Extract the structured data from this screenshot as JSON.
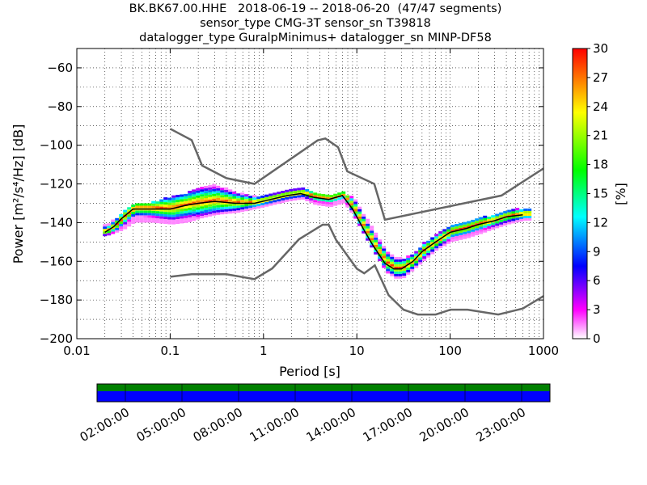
{
  "chart_data": {
    "type": "heatmap",
    "title_lines": [
      "BK.BK67.00.HHE   2018-06-19 -- 2018-06-20  (47/47 segments)",
      "sensor_type CMG-3T sensor_sn T39818",
      "datalogger_type GuralpMinimus+ datalogger_sn MINP-DF58"
    ],
    "xlabel": "Period [s]",
    "ylabel_text": "Power [m²/s⁴/Hz] [dB]",
    "x_scale": "log",
    "xlim": [
      0.01,
      1000
    ],
    "ylim": [
      -200,
      -50
    ],
    "x_tick_labels": [
      "0.01",
      "0.1",
      "1",
      "10",
      "100",
      "1000"
    ],
    "y_ticks": [
      -200,
      -180,
      -160,
      -140,
      -120,
      -100,
      -80,
      -60
    ],
    "y_tick_labels": [
      "−200",
      "−180",
      "−160",
      "−140",
      "−120",
      "−100",
      "−80",
      "−60"
    ],
    "grid": "dotted",
    "colorbar": {
      "label": "[%]",
      "range": [
        0,
        30
      ],
      "tick_labels": [
        "0",
        "3",
        "6",
        "9",
        "12",
        "15",
        "18",
        "21",
        "24",
        "27",
        "30"
      ],
      "stops": [
        "#ffffff",
        "#ff00ff",
        "#0000ff",
        "#00ffff",
        "#00ff00",
        "#ffff00",
        "#ff0000"
      ]
    },
    "noise_model_high": {
      "name": "NHNM",
      "x": [
        0.1,
        0.17,
        0.22,
        0.4,
        0.8,
        3.8,
        4.6,
        6.3,
        7.9,
        15.4,
        20,
        354.8,
        1000
      ],
      "y": [
        -91.5,
        -97.4,
        -110.5,
        -117,
        -120,
        -97.5,
        -96.5,
        -101,
        -113.5,
        -120,
        -138.5,
        -126,
        -112
      ]
    },
    "noise_model_low": {
      "name": "NLNM",
      "x": [
        0.1,
        0.17,
        0.4,
        0.8,
        1.24,
        2.4,
        4.3,
        5,
        6,
        10,
        12,
        15.6,
        21.9,
        31.6,
        45,
        70,
        101,
        154,
        328,
        600,
        1000
      ],
      "y": [
        -168,
        -166.7,
        -166.7,
        -169.2,
        -163.7,
        -148.6,
        -141.1,
        -141.1,
        -149,
        -163.8,
        -166.2,
        -162.1,
        -177.5,
        -185,
        -187.5,
        -187.5,
        -185,
        -185,
        -187.5,
        -184.4,
        -178
      ]
    },
    "mode_curve": {
      "name": "mode",
      "x": [
        0.02,
        0.025,
        0.03,
        0.04,
        0.06,
        0.1,
        0.15,
        0.2,
        0.3,
        0.5,
        0.8,
        1.2,
        1.8,
        2.5,
        3.5,
        5,
        7,
        9,
        12,
        15,
        20,
        25,
        30,
        40,
        50,
        70,
        100,
        150,
        200,
        300,
        400,
        600
      ],
      "y": [
        -145,
        -142,
        -138,
        -133,
        -133,
        -133,
        -131,
        -130,
        -129,
        -130,
        -130,
        -128,
        -126,
        -125,
        -127,
        -128,
        -126,
        -133,
        -144,
        -152,
        -161,
        -164,
        -164,
        -160,
        -155,
        -150,
        -145,
        -143,
        -141,
        -139,
        -137,
        -136
      ]
    },
    "density_upper_edge": {
      "x": [
        0.02,
        0.03,
        0.04,
        0.06,
        0.1,
        0.15,
        0.2,
        0.3,
        0.5,
        0.8,
        1.2,
        1.8,
        2.5,
        3.5,
        5,
        7,
        9,
        12,
        15,
        20,
        25,
        30,
        40,
        50,
        70,
        100,
        150,
        200,
        300,
        400,
        600
      ],
      "y": [
        -142,
        -135,
        -131,
        -130,
        -127,
        -125,
        -122,
        -121,
        -125,
        -127,
        -126,
        -124,
        -123,
        -125,
        -126,
        -125,
        -128,
        -138,
        -146,
        -155,
        -159,
        -159,
        -156,
        -151,
        -146,
        -142,
        -140,
        -138,
        -136,
        -134,
        -133
      ]
    },
    "density_lower_edge": {
      "x": [
        0.02,
        0.03,
        0.04,
        0.06,
        0.1,
        0.15,
        0.2,
        0.3,
        0.5,
        0.8,
        1.2,
        1.8,
        2.5,
        3.5,
        5,
        7,
        9,
        12,
        15,
        20,
        25,
        30,
        40,
        50,
        70,
        100,
        150,
        200,
        300,
        400,
        600
      ],
      "y": [
        -147,
        -144,
        -140,
        -140,
        -141,
        -140,
        -138,
        -136,
        -135,
        -133,
        -131,
        -129,
        -128,
        -131,
        -132,
        -130,
        -137,
        -148,
        -156,
        -166,
        -169,
        -169,
        -164,
        -160,
        -154,
        -150,
        -148,
        -146,
        -143,
        -141,
        -139
      ]
    },
    "time_axis": {
      "tick_labels": [
        "02:00:00",
        "05:00:00",
        "08:00:00",
        "11:00:00",
        "14:00:00",
        "17:00:00",
        "20:00:00",
        "23:00:00"
      ],
      "top_strip_color": "#008000",
      "bottom_strip_color": "#0000ff"
    }
  }
}
